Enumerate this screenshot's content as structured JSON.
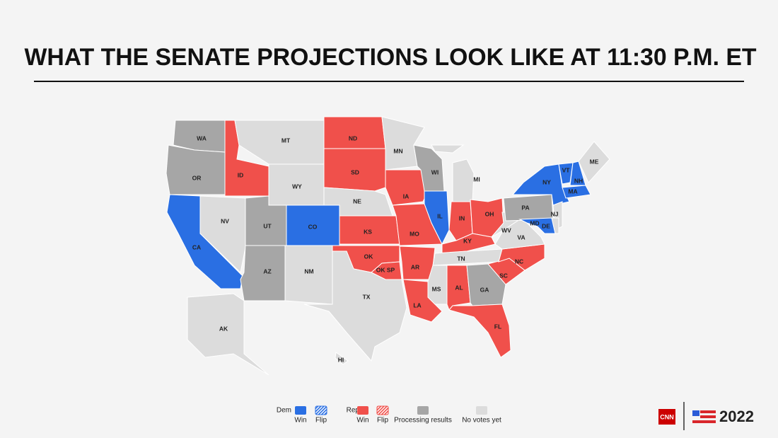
{
  "header": {
    "title": "WHAT THE SENATE PROJECTIONS LOOK LIKE AT 11:30 P.M. ET"
  },
  "map": {
    "states": [
      {
        "label": "WA",
        "color": "#a6a6a6"
      },
      {
        "label": "OR",
        "color": "#a6a6a6"
      },
      {
        "label": "CA",
        "color": "#2a6fe3"
      },
      {
        "label": "NV",
        "color": "#dcdcdc"
      },
      {
        "label": "ID",
        "color": "#f0504b"
      },
      {
        "label": "MT",
        "color": "#dcdcdc"
      },
      {
        "label": "WY",
        "color": "#dcdcdc"
      },
      {
        "label": "UT",
        "color": "#a6a6a6"
      },
      {
        "label": "CO",
        "color": "#2a6fe3"
      },
      {
        "label": "AZ",
        "color": "#a6a6a6"
      },
      {
        "label": "NM",
        "color": "#dcdcdc"
      },
      {
        "label": "ND",
        "color": "#f0504b"
      },
      {
        "label": "SD",
        "color": "#f0504b"
      },
      {
        "label": "NE",
        "color": "#dcdcdc"
      },
      {
        "label": "KS",
        "color": "#f0504b"
      },
      {
        "label": "OK",
        "color": "#f0504b"
      },
      {
        "label": "OK SP",
        "color": "#f0504b"
      },
      {
        "label": "TX",
        "color": "#dcdcdc"
      },
      {
        "label": "MN",
        "color": "#dcdcdc"
      },
      {
        "label": "IA",
        "color": "#f0504b"
      },
      {
        "label": "MO",
        "color": "#f0504b"
      },
      {
        "label": "AR",
        "color": "#f0504b"
      },
      {
        "label": "LA",
        "color": "#f0504b"
      },
      {
        "label": "WI",
        "color": "#a6a6a6"
      },
      {
        "label": "IL",
        "color": "#2a6fe3"
      },
      {
        "label": "MI",
        "color": "#dcdcdc"
      },
      {
        "label": "IN",
        "color": "#f0504b"
      },
      {
        "label": "OH",
        "color": "#f0504b"
      },
      {
        "label": "KY",
        "color": "#f0504b"
      },
      {
        "label": "TN",
        "color": "#dcdcdc"
      },
      {
        "label": "MS",
        "color": "#dcdcdc"
      },
      {
        "label": "AL",
        "color": "#f0504b"
      },
      {
        "label": "GA",
        "color": "#a6a6a6"
      },
      {
        "label": "FL",
        "color": "#f0504b"
      },
      {
        "label": "SC",
        "color": "#f0504b"
      },
      {
        "label": "NC",
        "color": "#f0504b"
      },
      {
        "label": "VA",
        "color": "#dcdcdc"
      },
      {
        "label": "WV",
        "color": "#dcdcdc"
      },
      {
        "label": "PA",
        "color": "#a6a6a6"
      },
      {
        "label": "NY",
        "color": "#2a6fe3"
      },
      {
        "label": "VT",
        "color": "#2a6fe3"
      },
      {
        "label": "NH",
        "color": "#2a6fe3"
      },
      {
        "label": "ME",
        "color": "#dcdcdc"
      },
      {
        "label": "MA",
        "color": "#2a6fe3"
      },
      {
        "label": "NJ",
        "color": "#dcdcdc"
      },
      {
        "label": "MD",
        "color": "#2a6fe3"
      },
      {
        "label": "DE",
        "color": "#dcdcdc"
      },
      {
        "label": "AK",
        "color": "#dcdcdc"
      },
      {
        "label": "HI",
        "color": "#dcdcdc"
      }
    ]
  },
  "legend": {
    "groups": [
      {
        "label": "Dem",
        "items": [
          {
            "label": "Win",
            "color": "#2a6fe3"
          },
          {
            "label": "Flip",
            "color": "#2a6fe3",
            "hatch": true
          }
        ]
      },
      {
        "label": "Rep",
        "items": [
          {
            "label": "Win",
            "color": "#f0504b"
          },
          {
            "label": "Flip",
            "color": "#f0504b",
            "hatch": true
          }
        ]
      },
      {
        "items": [
          {
            "label": "Processing results",
            "color": "#a6a6a6"
          },
          {
            "label": "No votes yet",
            "color": "#dcdcdc"
          }
        ]
      }
    ]
  },
  "branding": {
    "network": "CNN",
    "year": "2022"
  }
}
